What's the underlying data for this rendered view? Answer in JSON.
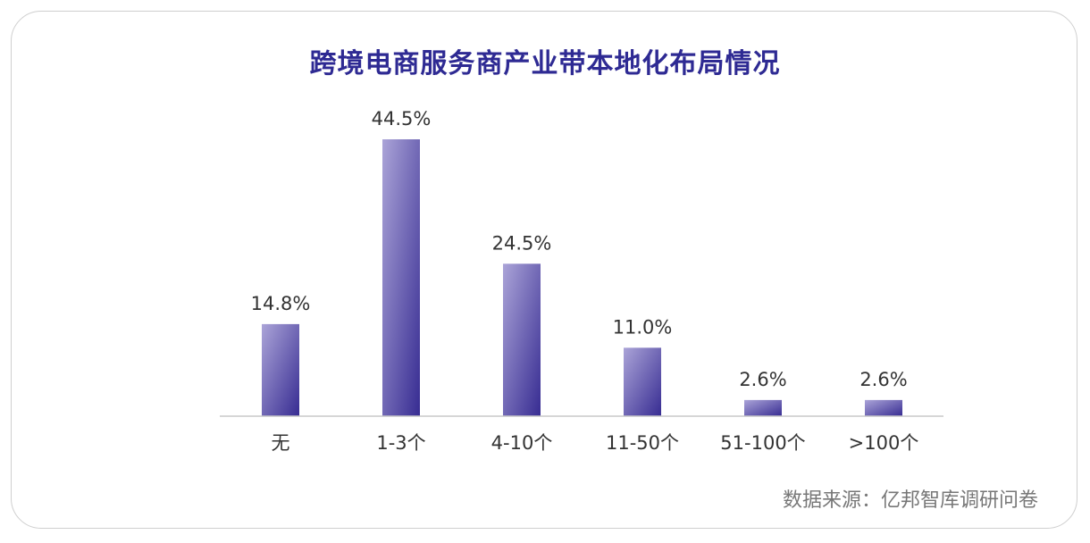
{
  "source_note": "数据来源：亿邦智库调研问卷",
  "colors": {
    "title": "#2e2a93",
    "bar_top": "#aba4d8",
    "bar_bottom": "#372c92",
    "axis": "#c8c8c8",
    "label": "#333333"
  },
  "chart_data": {
    "type": "bar",
    "title": "跨境电商服务商产业带本地化布局情况",
    "xlabel": "",
    "ylabel": "",
    "categories": [
      "无",
      "1-3个",
      "4-10个",
      "11-50个",
      "51-100个",
      ">100个"
    ],
    "values": [
      14.8,
      44.5,
      24.5,
      11.0,
      2.6,
      2.6
    ],
    "value_labels": [
      "14.8%",
      "44.5%",
      "24.5%",
      "11.0%",
      "2.6%",
      "2.6%"
    ],
    "ylim": [
      0,
      50
    ],
    "grid": false,
    "legend": "none"
  }
}
